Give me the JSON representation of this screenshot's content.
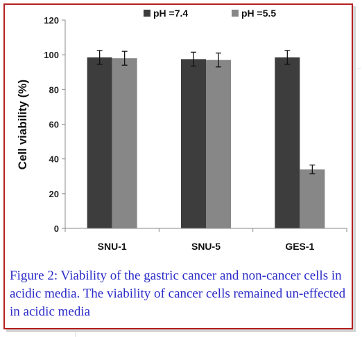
{
  "caption": {
    "label": "Figure 2:",
    "text": " Viability of the gastric cancer and non-cancer cells in acidic media. The viability of cancer cells remained un-effected in acidic media"
  },
  "chart_data": {
    "type": "bar",
    "title": "",
    "xlabel": "",
    "ylabel": "Cell viability (%)",
    "ylim": [
      0,
      120
    ],
    "yticks": [
      "0",
      "20",
      "40",
      "60",
      "80",
      "100",
      "120"
    ],
    "categories": [
      "SNU-1",
      "SNU-5",
      "GES-1"
    ],
    "series": [
      {
        "name": "pH =7.4",
        "color": "#3d3d3d",
        "values": [
          98.5,
          97.5,
          98.5
        ],
        "errors": [
          4,
          4,
          4
        ]
      },
      {
        "name": "pH =5.5",
        "color": "#878787",
        "values": [
          98,
          97,
          34
        ],
        "errors": [
          4,
          4,
          2.5
        ]
      }
    ],
    "grid": false,
    "legend_position": "top"
  }
}
